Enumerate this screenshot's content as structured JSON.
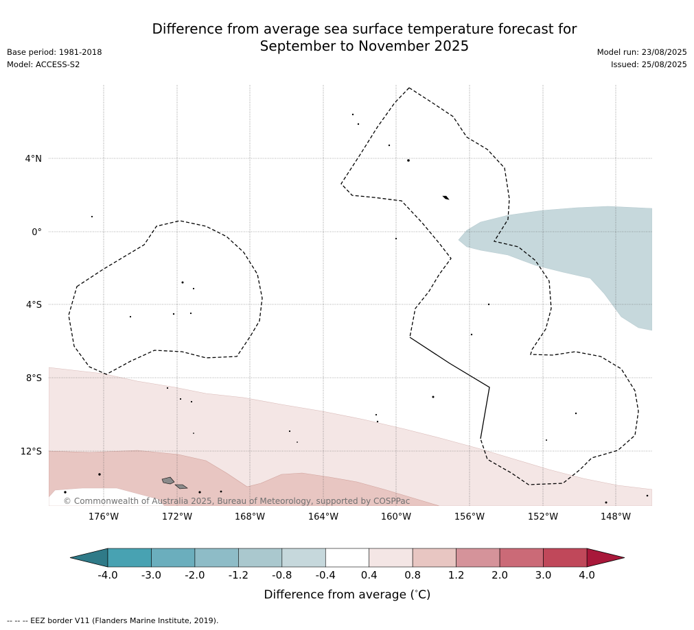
{
  "title_line1": "Difference from average sea surface temperature forecast for",
  "title_line2": "September to November 2025",
  "base_period": "Base period: 1981-2018",
  "model": "Model: ACCESS-S2",
  "model_run": "Model run: 23/08/2025",
  "issued": "Issued: 25/08/2025",
  "copyright": "© Commonwealth of Australia 2025, Bureau of Meteorology, supported by COSPPac",
  "latitude_labels": [
    "4°N",
    "0°",
    "4°S",
    "8°S",
    "12°S"
  ],
  "longitude_labels": [
    "176°W",
    "172°W",
    "168°W",
    "164°W",
    "160°W",
    "156°W",
    "152°W",
    "148°W"
  ],
  "colorbar": {
    "label": "Difference from average (°C)",
    "label_prefix": "Difference from average (",
    "label_degree": "°",
    "label_suffix": "C)",
    "ticks": [
      "-4.0",
      "-3.0",
      "-2.0",
      "-1.2",
      "-0.8",
      "-0.4",
      "0.4",
      "0.8",
      "1.2",
      "2.0",
      "3.0",
      "4.0"
    ],
    "colors": [
      "#48a2b2",
      "#6baebd",
      "#8ebcc7",
      "#aac8ce",
      "#c6d8dc",
      "#ffffff",
      "#f4e6e5",
      "#e8c6c2",
      "#d5939a",
      "#cb6a77",
      "#c0485a"
    ],
    "under_color": "#2f7a88",
    "over_color": "#a8183a"
  },
  "footer": "-- -- -- EEZ border V11 (Flanders Marine Institute, 2019)."
}
